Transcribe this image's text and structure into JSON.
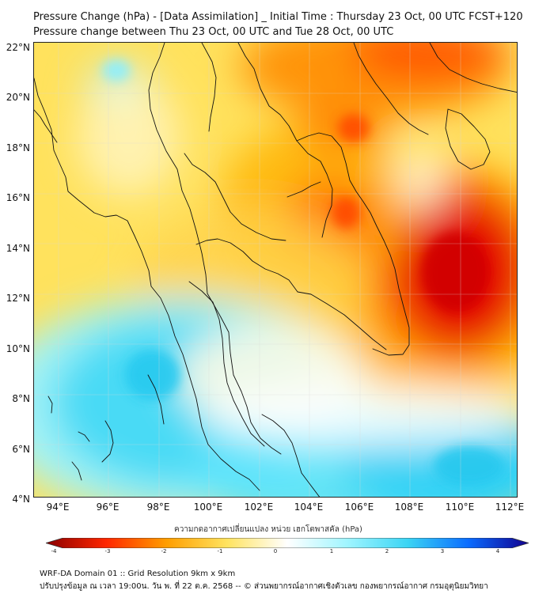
{
  "title": {
    "line1": "Pressure Change (hPa) - [Data Assimilation] _ Initial Time : Thursday 23 Oct, 00 UTC FCST+120",
    "line2": "Pressure change between Thu 23 Oct, 00 UTC and Tue 28 Oct, 00 UTC"
  },
  "map": {
    "lat_labels": [
      "22°N",
      "20°N",
      "18°N",
      "16°N",
      "14°N",
      "12°N",
      "10°N",
      "8°N",
      "6°N",
      "4°N"
    ],
    "lon_labels": [
      "94°E",
      "96°E",
      "98°E",
      "100°E",
      "102°E",
      "104°E",
      "106°E",
      "108°E",
      "110°E",
      "112°E"
    ],
    "background_color": "#ffe25d",
    "low_color": "#e50000",
    "high_color": "#3fd6f2",
    "coastline_color": "#111111"
  },
  "colorbar": {
    "label": "ความกดอากาศเปลี่ยนแปลง หน่วย เฮกโตพาสคัล (hPa)",
    "ticks": [
      "-4",
      "-3",
      "-2",
      "-1",
      "0",
      "1",
      "2",
      "3",
      "4"
    ],
    "colors": [
      "#8b0000",
      "#ff2600",
      "#ff9e00",
      "#ffe35f",
      "#ffffff",
      "#9ff5ff",
      "#3ad4f4",
      "#0a6cff",
      "#11008f"
    ]
  },
  "footer": {
    "line1": "WRF-DA Domain 01 :: Grid Resolution 9km x 9km",
    "line2": "ปรับปรุงข้อมูล ณ เวลา 19:00น. วัน พ. ที่ 22 ต.ค. 2568 -- © ส่วนพยากรณ์อากาศเชิงตัวเลข กองพยากรณ์อากาศ กรมอุตุนิยมวิทยา"
  }
}
